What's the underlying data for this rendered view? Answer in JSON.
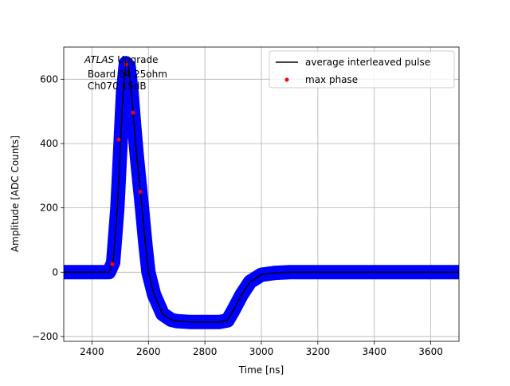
{
  "chart_data": {
    "type": "line",
    "xlabel": "Time [ns]",
    "ylabel": "Amplitude [ADC Counts]",
    "annotation": {
      "italic": "ATLAS",
      "lines": [
        "Upgrade",
        " Board 04 25ohm",
        " Ch070 15dB"
      ]
    },
    "x": [
      2300,
      2460,
      2475,
      2490,
      2500,
      2510,
      2520,
      2530,
      2540,
      2550,
      2560,
      2575,
      2590,
      2600,
      2620,
      2650,
      2680,
      2700,
      2750,
      2800,
      2850,
      2880,
      2900,
      2930,
      2960,
      3000,
      3050,
      3100,
      3700
    ],
    "series": [
      {
        "name": "average interleaved pulse",
        "color": "#000000",
        "band_color": "#0000ff",
        "values": [
          0,
          0,
          30,
          200,
          380,
          560,
          650,
          640,
          560,
          450,
          350,
          220,
          80,
          0,
          -70,
          -130,
          -148,
          -152,
          -155,
          -155,
          -155,
          -150,
          -120,
          -70,
          -30,
          -8,
          -2,
          0,
          0
        ]
      },
      {
        "name": "max phase",
        "color": "#ff0000",
        "marker": true,
        "x": [
          2472,
          2495,
          2521,
          2546,
          2571
        ],
        "values": [
          25,
          412,
          647,
          496,
          250
        ]
      }
    ],
    "xlim": [
      2300,
      3700
    ],
    "ylim": [
      -215,
      700
    ],
    "xticks": [
      2400,
      2600,
      2800,
      3000,
      3200,
      3400,
      3600
    ],
    "yticks": [
      {
        "value": -200,
        "label": "−200"
      },
      0,
      200,
      400,
      600
    ],
    "grid": true,
    "legend": "upper right"
  }
}
